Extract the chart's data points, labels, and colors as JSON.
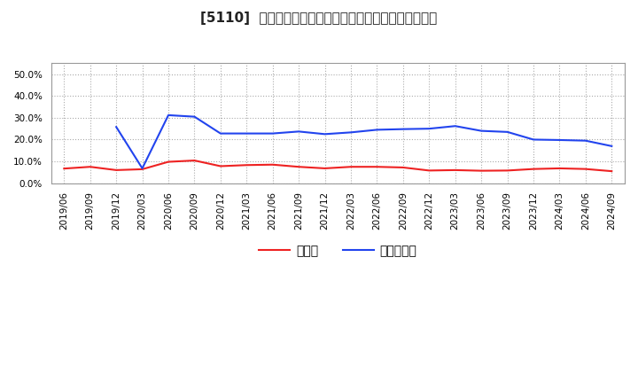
{
  "title": "[5110]  現預金、有利子負債の総資産に対する比率の推移",
  "x_labels": [
    "2019/06",
    "2019/09",
    "2019/12",
    "2020/03",
    "2020/06",
    "2020/09",
    "2020/12",
    "2021/03",
    "2021/06",
    "2021/09",
    "2021/12",
    "2022/03",
    "2022/06",
    "2022/09",
    "2022/12",
    "2023/03",
    "2023/06",
    "2023/09",
    "2023/12",
    "2024/03",
    "2024/06",
    "2024/09"
  ],
  "cash": [
    0.067,
    0.075,
    0.06,
    0.064,
    0.098,
    0.104,
    0.078,
    0.083,
    0.085,
    0.075,
    0.068,
    0.075,
    0.075,
    0.072,
    0.058,
    0.06,
    0.057,
    0.058,
    0.065,
    0.068,
    0.065,
    0.055
  ],
  "debt": [
    null,
    null,
    0.258,
    0.068,
    0.312,
    0.305,
    0.228,
    0.228,
    0.228,
    0.237,
    0.225,
    0.233,
    0.245,
    0.248,
    0.25,
    0.262,
    0.24,
    0.235,
    0.2,
    0.198,
    0.195,
    0.17
  ],
  "cash_color": "#ee2222",
  "debt_color": "#2244ee",
  "background_color": "#ffffff",
  "plot_bg_color": "#ffffff",
  "grid_color": "#aaaaaa",
  "ylim": [
    0.0,
    0.55
  ],
  "yticks": [
    0.0,
    0.1,
    0.2,
    0.3,
    0.4,
    0.5
  ],
  "legend_cash": "現預金",
  "legend_debt": "有利子負債",
  "title_fontsize": 11,
  "tick_fontsize": 7.5,
  "legend_fontsize": 10
}
